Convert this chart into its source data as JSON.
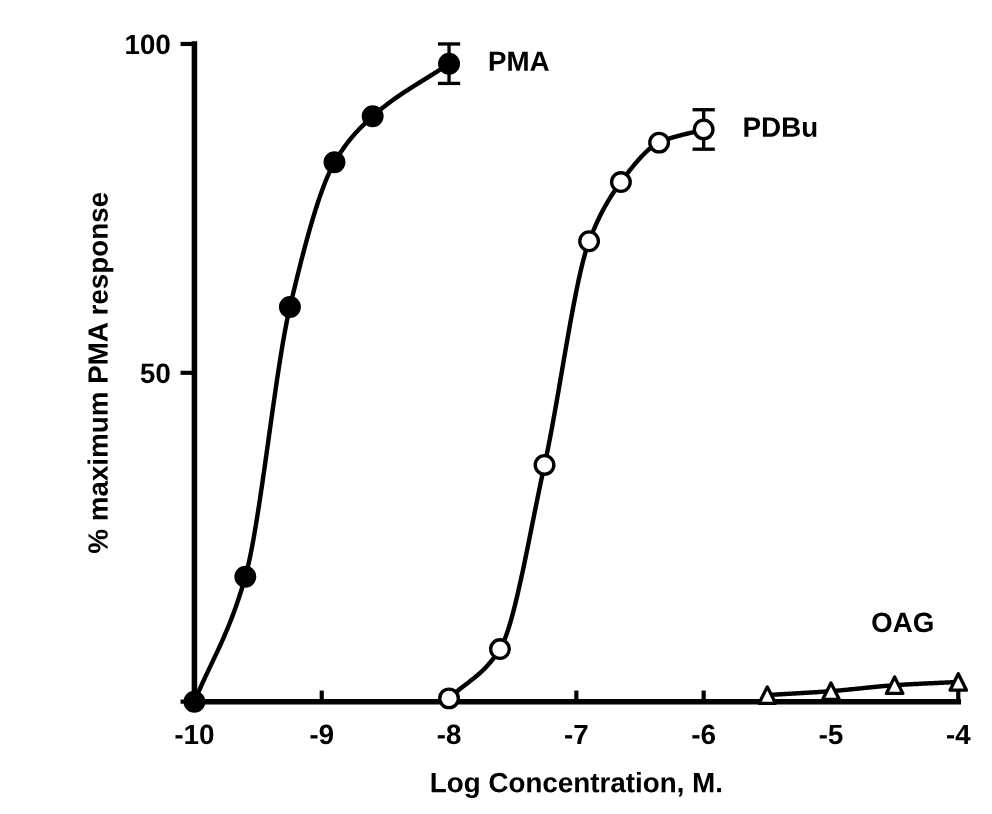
{
  "chart_data": {
    "type": "line",
    "xlabel": "Log Concentration, M.",
    "ylabel": "% maximum PMA response",
    "xlim": [
      -10,
      -4
    ],
    "xticks": [
      -10,
      -9,
      -8,
      -7,
      -6,
      -5,
      -4
    ],
    "ylim": [
      0,
      100
    ],
    "yticks": [
      {
        "value": 0,
        "label": null
      },
      50,
      100
    ],
    "grid": false,
    "legend": false,
    "series": [
      {
        "name": "PMA",
        "color": "#000000",
        "marker": "circle",
        "x": [
          -10,
          -9.6,
          -9.25,
          -8.9,
          -8.6,
          -8
        ],
        "values": [
          0,
          19,
          60,
          82,
          89,
          97
        ],
        "errors": [
          null,
          null,
          null,
          null,
          null,
          3
        ]
      },
      {
        "name": "PDBu",
        "color": "#000000",
        "marker": "circle",
        "x": [
          -8,
          -7.6,
          -7.25,
          -6.9,
          -6.65,
          -6.35,
          -6
        ],
        "values": [
          0.5,
          8,
          36,
          70,
          79,
          85,
          87
        ],
        "errors": [
          null,
          null,
          null,
          null,
          null,
          null,
          3
        ]
      },
      {
        "name": "OAG",
        "color": "#000000",
        "marker": "triangle",
        "x": [
          -5.5,
          -5,
          -4.5,
          -4
        ],
        "values": [
          1,
          1.6,
          2.5,
          3
        ]
      }
    ]
  }
}
